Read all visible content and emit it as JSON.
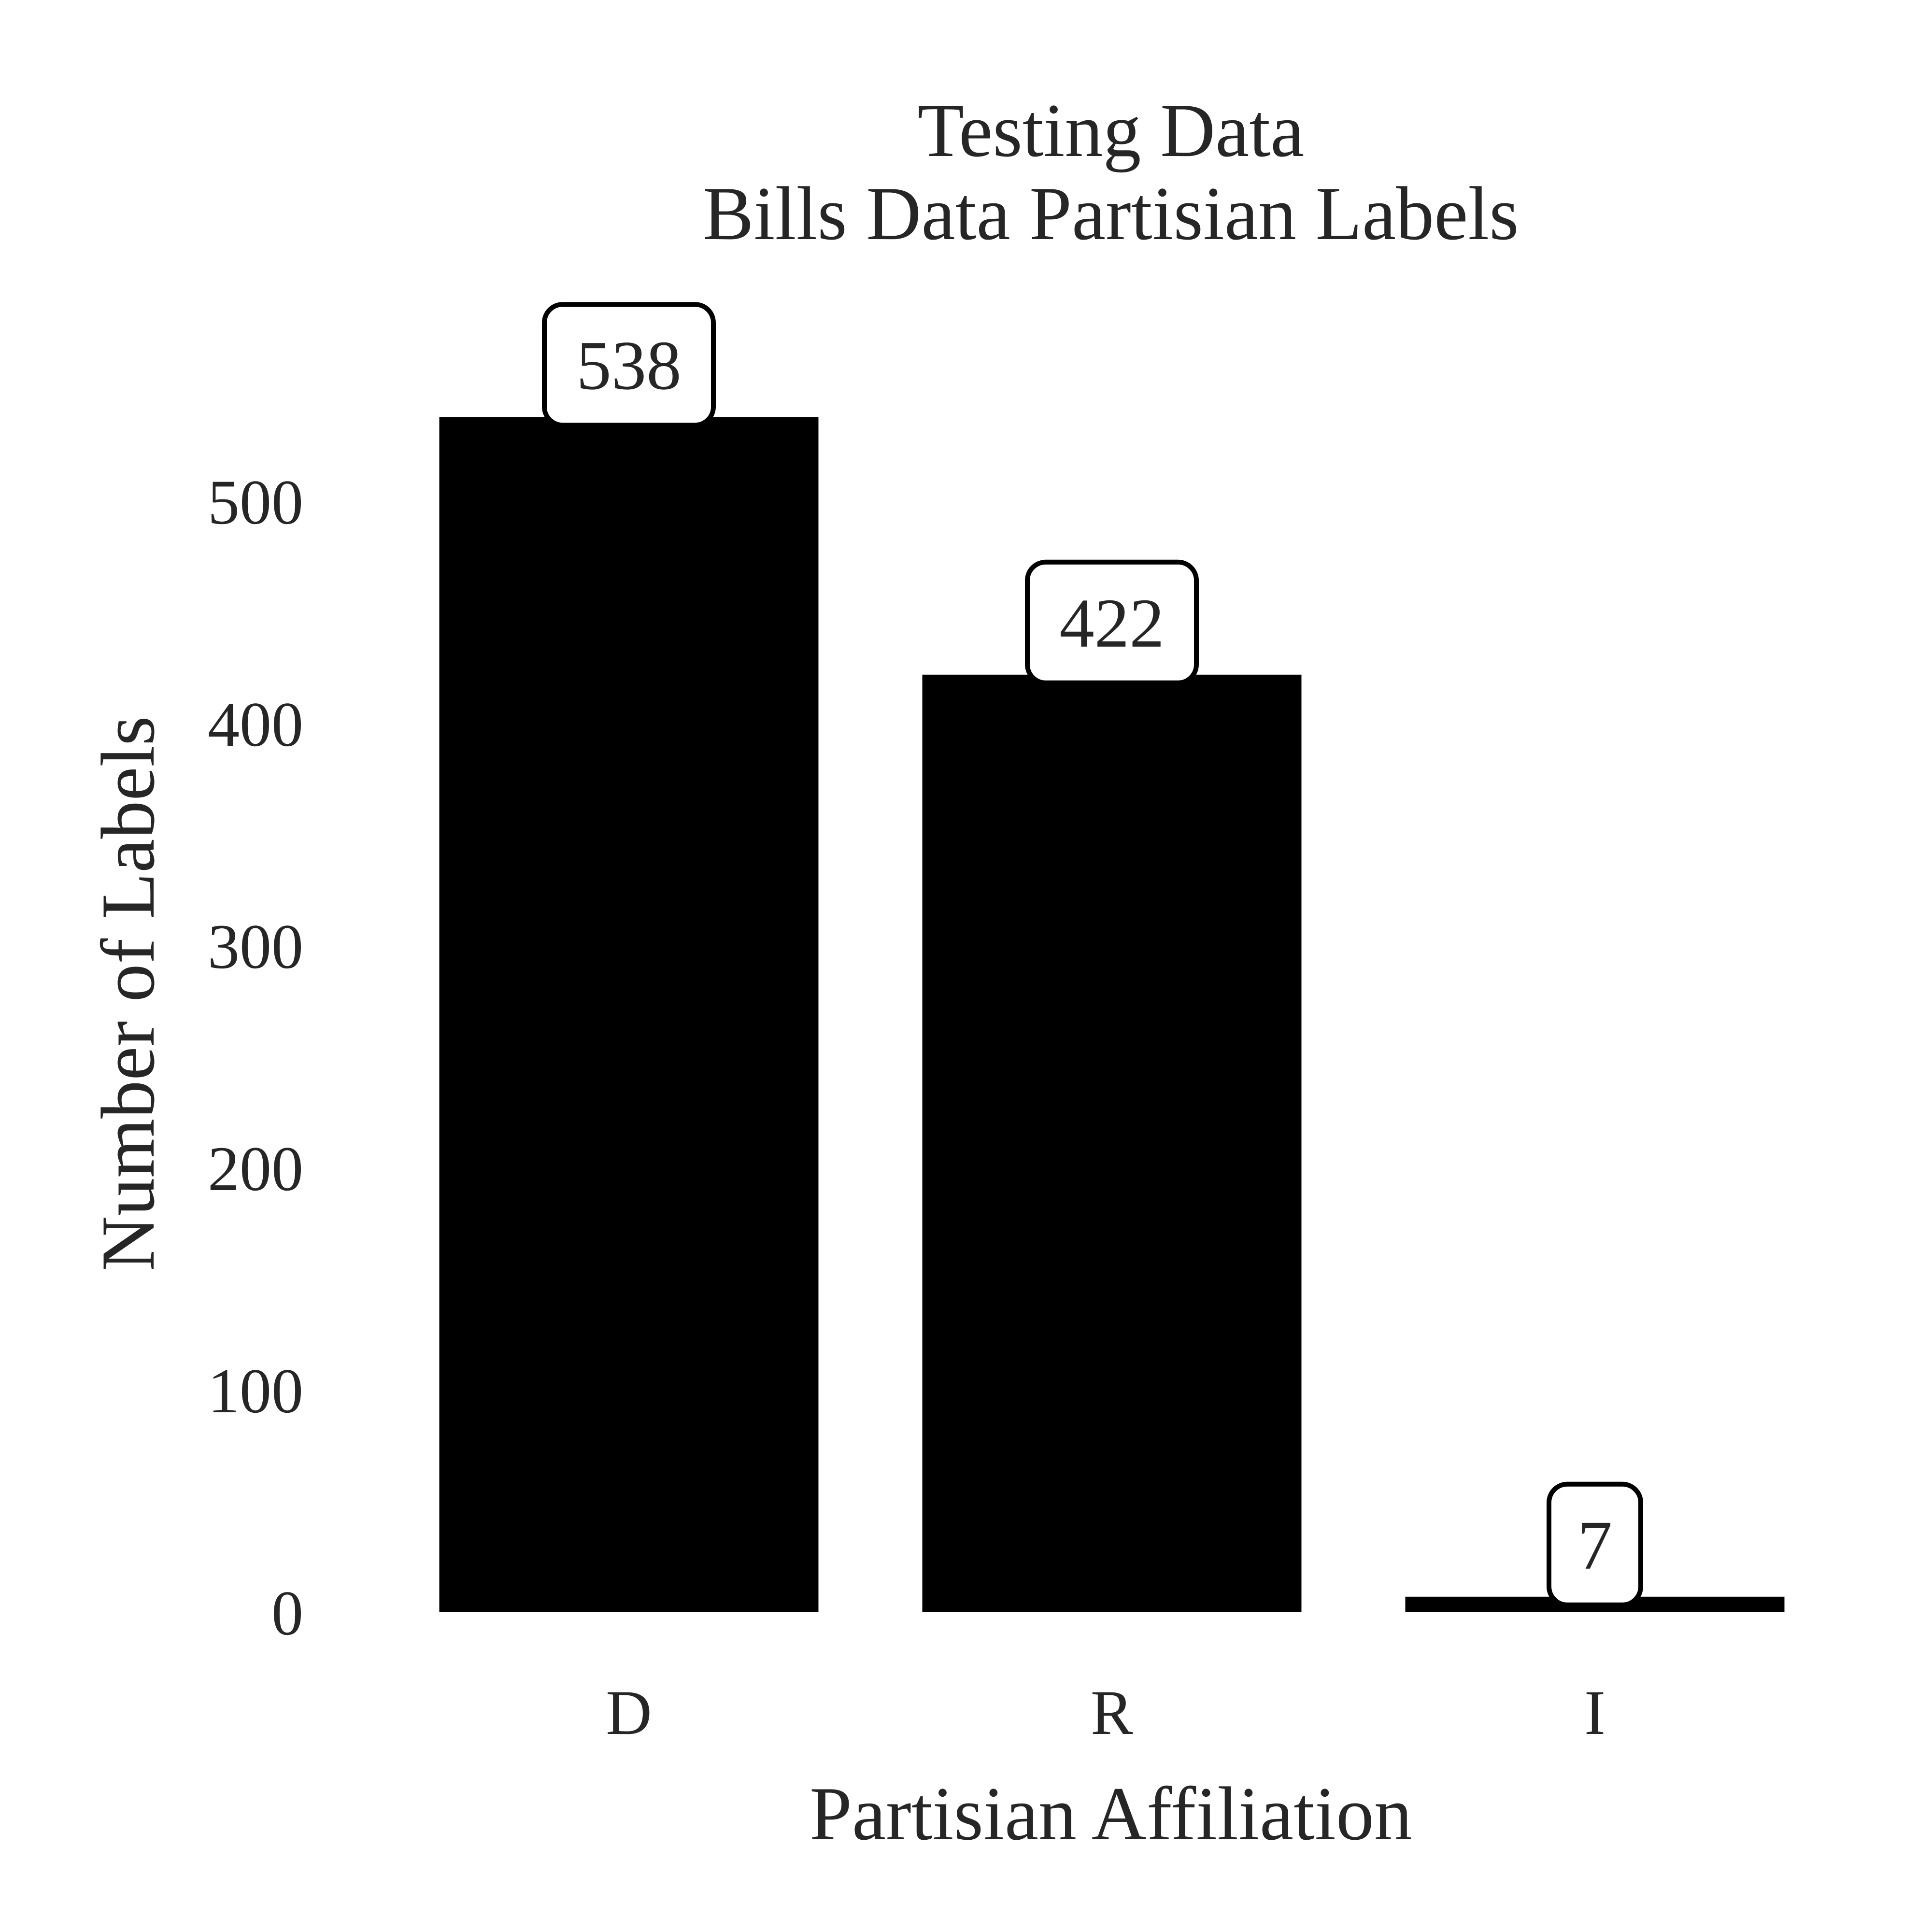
{
  "chart_data": {
    "type": "bar",
    "title": "Testing Data",
    "subtitle": "Bills Data Partisian Labels",
    "xlabel": "Partisian Affiliation",
    "ylabel": "Number of Labels",
    "categories": [
      "D",
      "R",
      "I"
    ],
    "values": [
      538,
      422,
      7
    ],
    "data_labels": [
      "538",
      "422",
      "7"
    ],
    "yticks": [
      0,
      100,
      200,
      300,
      400,
      500
    ],
    "ylim": [
      0,
      565
    ],
    "grid": false,
    "bar_color": "#000000",
    "text_color": "#262626"
  }
}
